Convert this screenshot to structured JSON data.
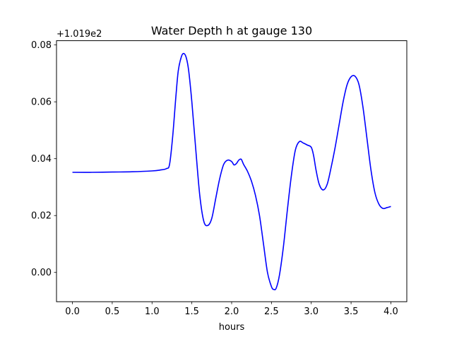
{
  "chart_data": {
    "type": "line",
    "title": "Water Depth h at gauge 130",
    "xlabel": "hours",
    "ylabel": "",
    "offset_text": "+1.019e2",
    "xlim": [
      -0.2,
      4.2
    ],
    "ylim": [
      -0.0103,
      0.0815
    ],
    "xticks": [
      0.0,
      0.5,
      1.0,
      1.5,
      2.0,
      2.5,
      3.0,
      3.5,
      4.0
    ],
    "xtick_labels": [
      "0.0",
      "0.5",
      "1.0",
      "1.5",
      "2.0",
      "2.5",
      "3.0",
      "3.5",
      "4.0"
    ],
    "yticks": [
      0.0,
      0.02,
      0.04,
      0.06,
      0.08
    ],
    "ytick_labels": [
      "0.00",
      "0.02",
      "0.04",
      "0.06",
      "0.08"
    ],
    "grid": false,
    "series": [
      {
        "color": "#0000ff",
        "x": [
          0.0,
          0.25,
          0.5,
          0.75,
          1.0,
          1.1,
          1.18,
          1.22,
          1.26,
          1.3,
          1.33,
          1.37,
          1.4,
          1.43,
          1.46,
          1.5,
          1.55,
          1.6,
          1.65,
          1.7,
          1.75,
          1.8,
          1.85,
          1.9,
          1.95,
          2.0,
          2.03,
          2.06,
          2.09,
          2.12,
          2.15,
          2.2,
          2.25,
          2.3,
          2.35,
          2.4,
          2.45,
          2.5,
          2.53,
          2.56,
          2.6,
          2.65,
          2.7,
          2.75,
          2.8,
          2.85,
          2.9,
          2.95,
          3.0,
          3.03,
          3.06,
          3.1,
          3.15,
          3.2,
          3.25,
          3.3,
          3.35,
          3.4,
          3.45,
          3.5,
          3.55,
          3.6,
          3.65,
          3.7,
          3.75,
          3.8,
          3.85,
          3.9,
          3.95,
          4.0
        ],
        "y": [
          0.0352,
          0.0352,
          0.0353,
          0.0354,
          0.0357,
          0.036,
          0.0365,
          0.038,
          0.048,
          0.062,
          0.071,
          0.076,
          0.077,
          0.0755,
          0.071,
          0.06,
          0.043,
          0.027,
          0.018,
          0.0165,
          0.019,
          0.026,
          0.033,
          0.038,
          0.0395,
          0.039,
          0.0378,
          0.0383,
          0.0395,
          0.0398,
          0.038,
          0.0355,
          0.032,
          0.027,
          0.02,
          0.01,
          0.0,
          -0.005,
          -0.006,
          -0.0055,
          -0.001,
          0.009,
          0.022,
          0.034,
          0.043,
          0.046,
          0.0455,
          0.0448,
          0.044,
          0.041,
          0.036,
          0.031,
          0.029,
          0.031,
          0.037,
          0.044,
          0.052,
          0.06,
          0.066,
          0.0688,
          0.069,
          0.066,
          0.058,
          0.047,
          0.036,
          0.028,
          0.024,
          0.0225,
          0.0228,
          0.0232
        ]
      }
    ]
  }
}
